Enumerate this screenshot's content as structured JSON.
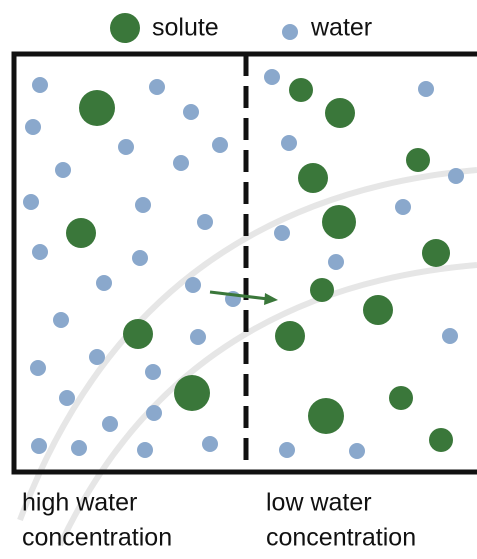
{
  "legend": {
    "items": [
      {
        "label": "solute"
      },
      {
        "label": "water"
      }
    ]
  },
  "panels": [
    {
      "label": [
        "high water",
        "concentration"
      ]
    },
    {
      "label": [
        "low water",
        "concentration"
      ]
    }
  ]
}
